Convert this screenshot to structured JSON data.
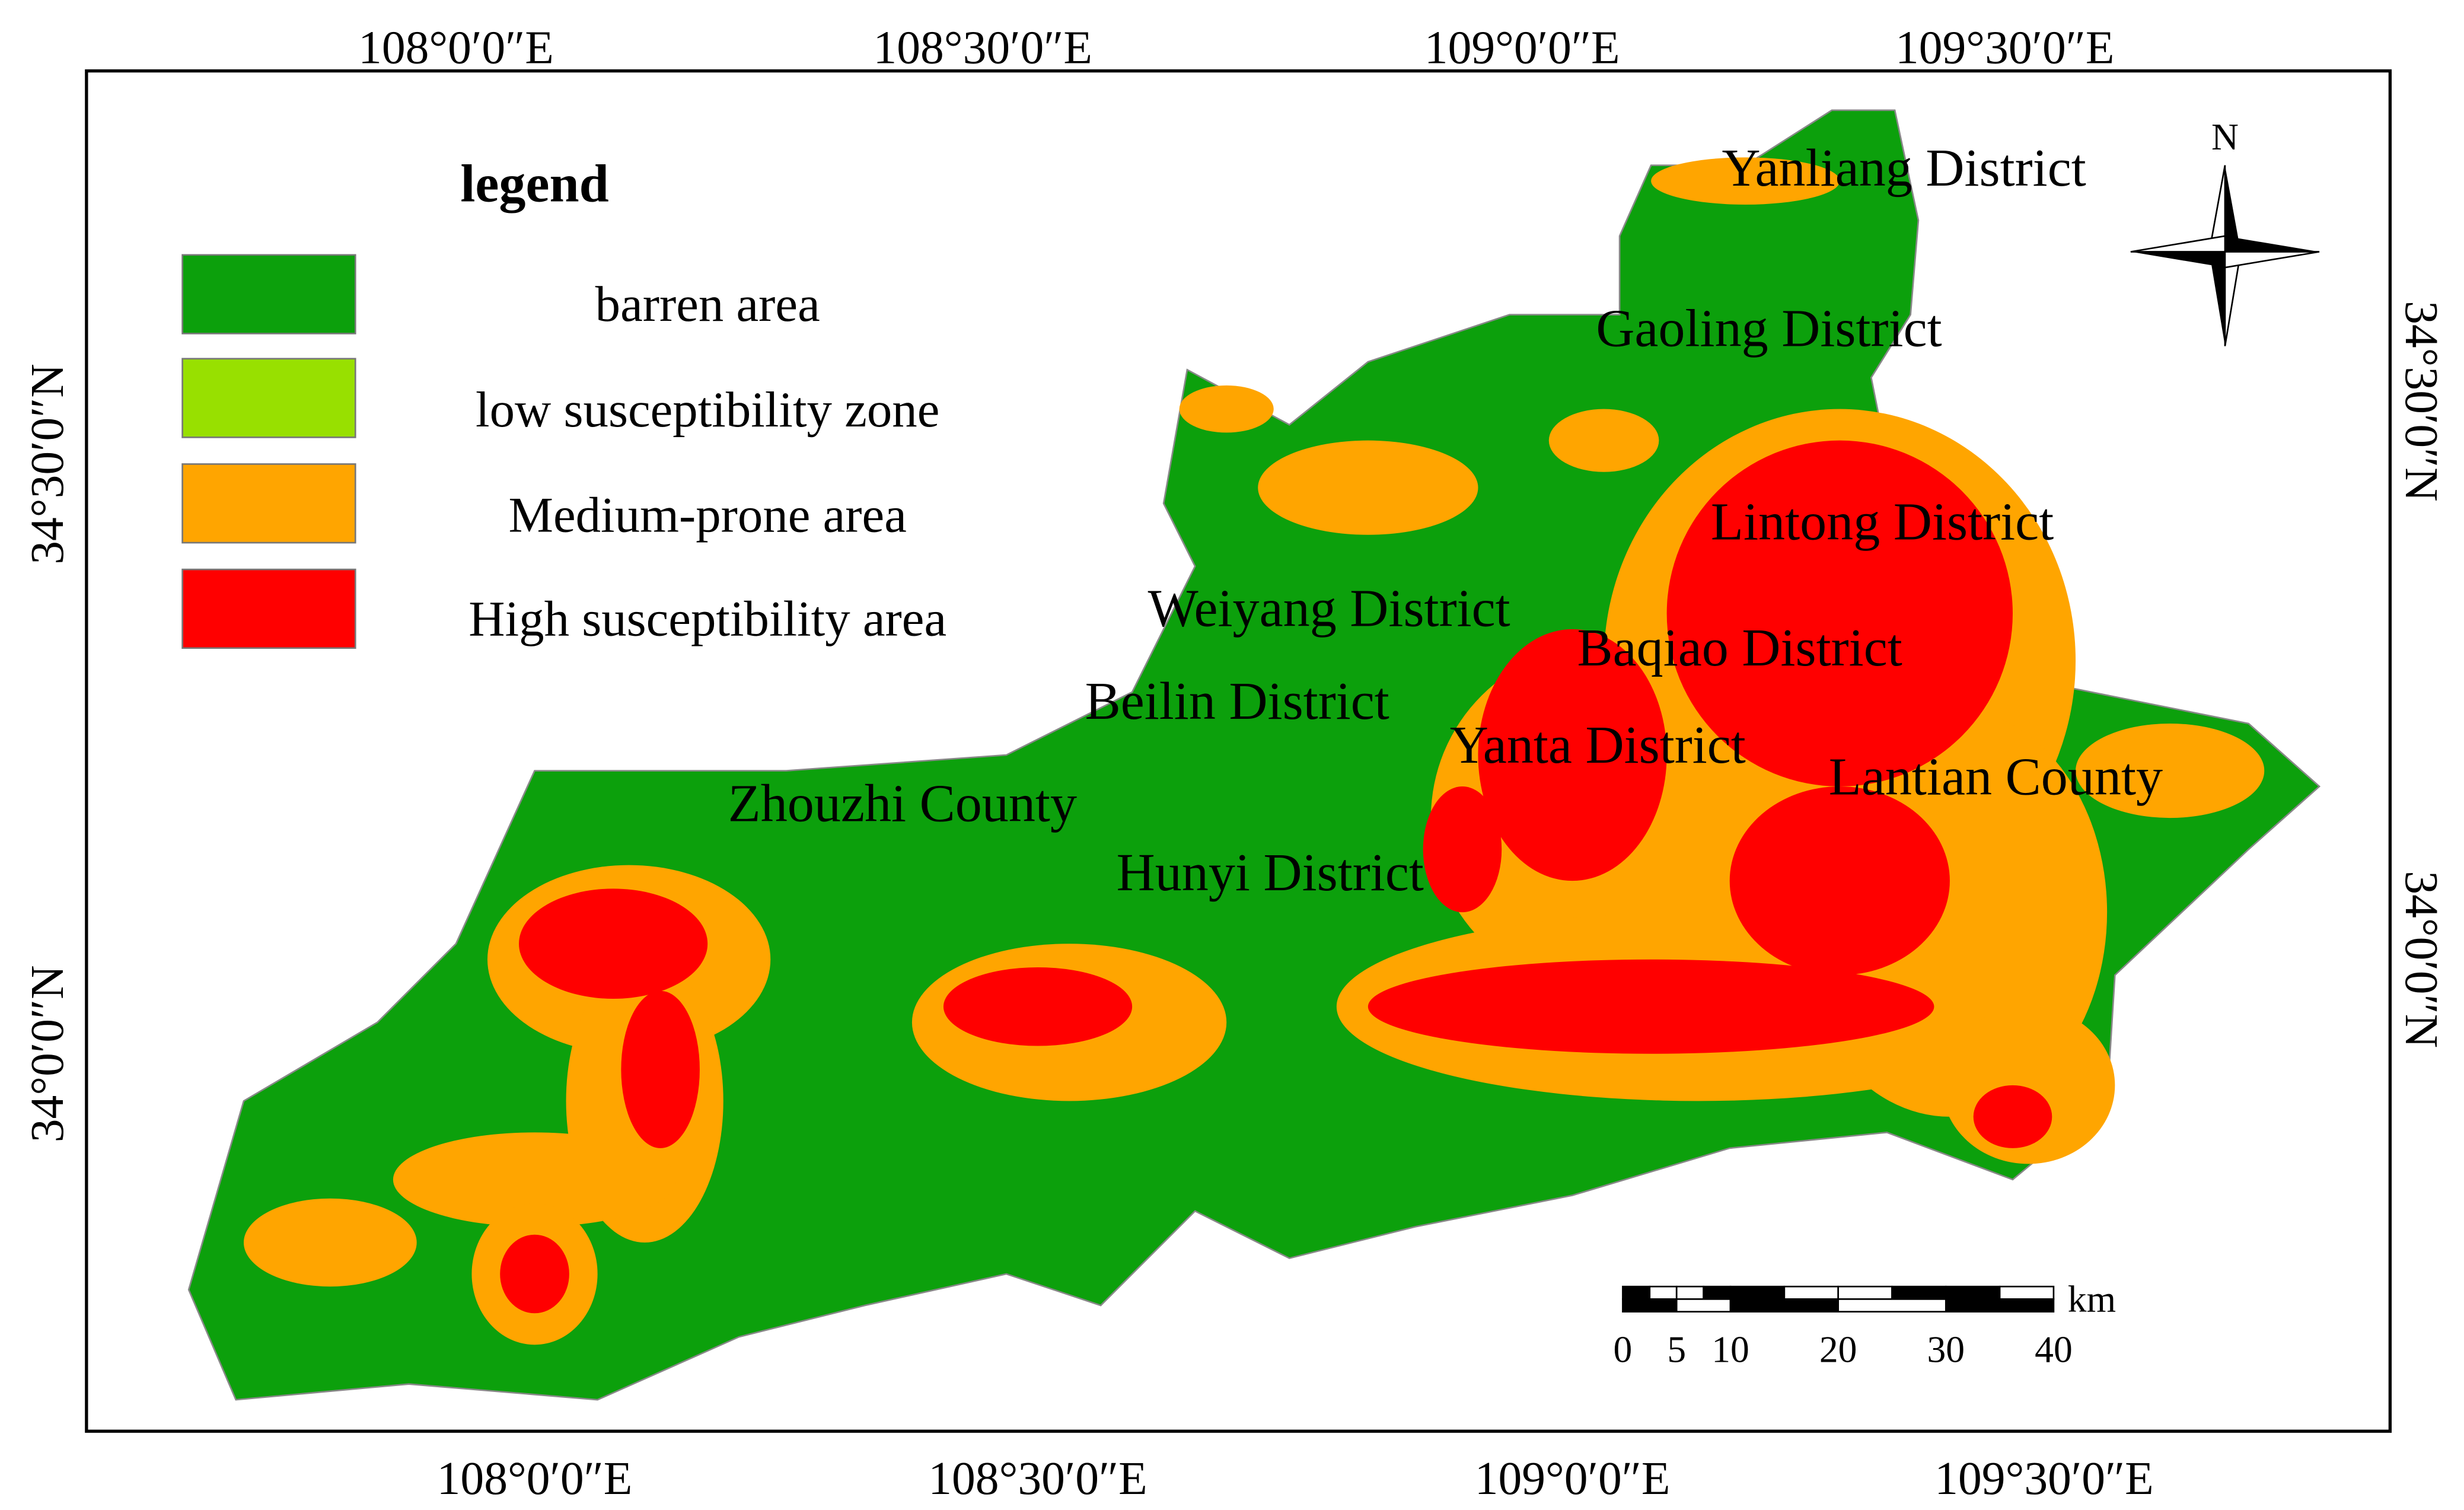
{
  "legend": {
    "title": "legend",
    "items": [
      "barren area",
      "low susceptibility zone",
      "Medium-prone area",
      "High susceptibility area"
    ]
  },
  "districts": [
    "Yanliang District",
    "Gaoling District",
    "Lintong District",
    "Weiyang District",
    "Baqiao District",
    "Beilin District",
    "Yanta District",
    "Lantian County",
    "Zhouzhi County",
    "Hunyi District"
  ],
  "top_labels": [
    "108°0′0″E",
    "108°30′0″E",
    "109°0′0″E",
    "109°30′0″E"
  ],
  "bottom_labels": [
    "108°0′0″E",
    "108°30′0″E",
    "109°0′0″E",
    "109°30′0″E"
  ],
  "left_labels": [
    "34°30′0″N",
    "34°0′0″N"
  ],
  "right_labels": [
    "34°30′0″N",
    "34°0′0″N"
  ],
  "north": "N",
  "scale": {
    "unit": "km",
    "ticks": [
      0,
      5,
      10,
      20,
      30,
      40
    ]
  }
}
